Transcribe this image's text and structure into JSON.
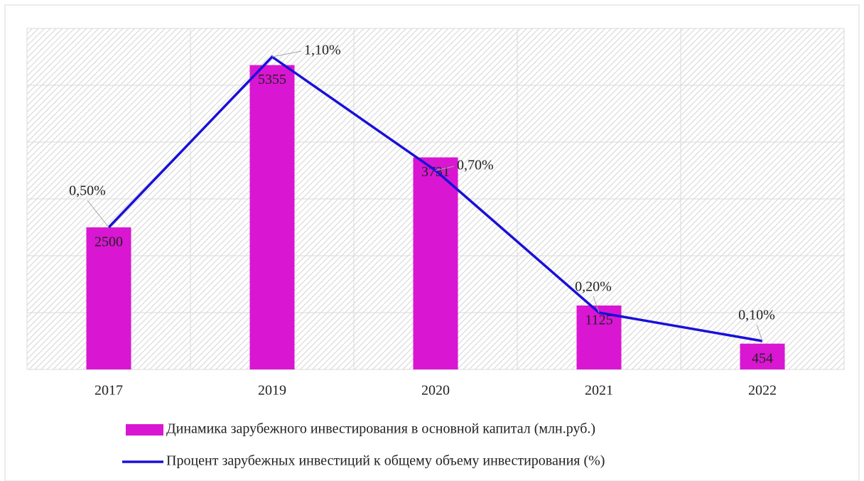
{
  "chart_data": {
    "type": "bar_line",
    "categories": [
      "2017",
      "2019",
      "2020",
      "2021",
      "2022"
    ],
    "series": [
      {
        "name": "Динамика зарубежного инвестирования в основной капитал (млн.руб.)",
        "type": "bar",
        "color": "#d916d2",
        "values": [
          2500,
          5355,
          3731,
          1125,
          454
        ]
      },
      {
        "name": "Процент зарубежных инвестиций к общему объему инвестирования (%)",
        "type": "line",
        "axis": "y2",
        "color": "#1a10d8",
        "values": [
          0.5,
          1.1,
          0.7,
          0.2,
          0.1
        ],
        "value_labels": [
          "0,50%",
          "1,10%",
          "0,70%",
          "0,20%",
          "0,10%"
        ]
      }
    ],
    "ylim": [
      0,
      6000
    ],
    "yticks": [
      0,
      1000,
      2000,
      3000,
      4000,
      5000,
      6000
    ],
    "y2lim": [
      0,
      1.2
    ],
    "grid": true
  }
}
